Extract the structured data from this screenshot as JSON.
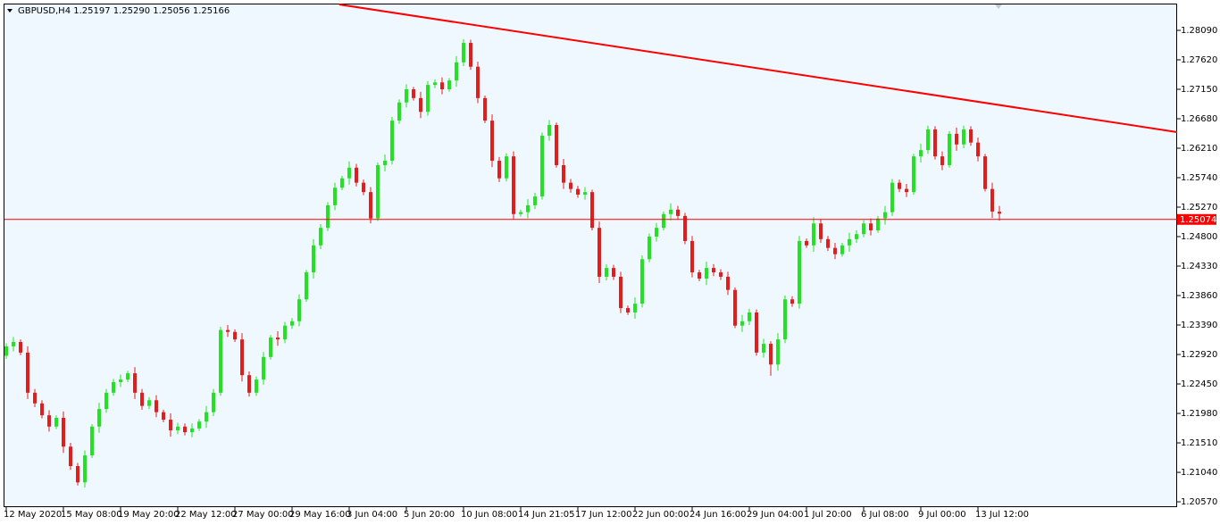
{
  "chart_data": {
    "type": "candlestick",
    "title": "GBPUSD,H4  1.25197 1.25290 1.25056 1.25166",
    "up_color": "#22e322",
    "down_color": "#e41c1c",
    "background": "#f0f8ff",
    "ylim": [
      1.20485,
      1.28503
    ],
    "yticks": [
      {
        "value": 1.2809,
        "label": "1.28090"
      },
      {
        "value": 1.2762,
        "label": "1.27620"
      },
      {
        "value": 1.2715,
        "label": "1.27150"
      },
      {
        "value": 1.2668,
        "label": "1.26680"
      },
      {
        "value": 1.2621,
        "label": "1.26210"
      },
      {
        "value": 1.2574,
        "label": "1.25740"
      },
      {
        "value": 1.2527,
        "label": "1.25270"
      },
      {
        "value": 1.248,
        "label": "1.24800"
      },
      {
        "value": 1.2433,
        "label": "1.24330"
      },
      {
        "value": 1.2386,
        "label": "1.23860"
      },
      {
        "value": 1.2339,
        "label": "1.23390"
      },
      {
        "value": 1.2292,
        "label": "1.22920"
      },
      {
        "value": 1.2245,
        "label": "1.22450"
      },
      {
        "value": 1.2198,
        "label": "1.21980"
      },
      {
        "value": 1.2151,
        "label": "1.21510"
      },
      {
        "value": 1.2104,
        "label": "1.21040"
      },
      {
        "value": 1.2057,
        "label": "1.20570"
      }
    ],
    "xlim": [
      -0.25,
      163.875
    ],
    "xticks": [
      {
        "value": 0,
        "label": "12 May 2020"
      },
      {
        "value": 8,
        "label": "15 May 08:00"
      },
      {
        "value": 16,
        "label": "19 May 20:00"
      },
      {
        "value": 24,
        "label": "22 May 12:00"
      },
      {
        "value": 32,
        "label": "27 May 00:00"
      },
      {
        "value": 40,
        "label": "29 May 16:00"
      },
      {
        "value": 48,
        "label": "3 Jun 04:00"
      },
      {
        "value": 56,
        "label": "5 Jun 20:00"
      },
      {
        "value": 64,
        "label": "10 Jun 08:00"
      },
      {
        "value": 72,
        "label": "14 Jun 21:05"
      },
      {
        "value": 80,
        "label": "17 Jun 12:00"
      },
      {
        "value": 88,
        "label": "22 Jun 00:00"
      },
      {
        "value": 96,
        "label": "24 Jun 16:00"
      },
      {
        "value": 104,
        "label": "29 Jun 04:00"
      },
      {
        "value": 112,
        "label": "1 Jul 20:00"
      },
      {
        "value": 120,
        "label": "6 Jul 08:00"
      },
      {
        "value": 128,
        "label": "9 Jul 00:00"
      },
      {
        "value": 136,
        "label": "13 Jul 12:00"
      }
    ],
    "trendline": {
      "x": [
        46.6,
        163.875
      ],
      "y": [
        1.28503,
        1.26467
      ],
      "color": "#ff0000"
    },
    "hline": {
      "value": 1.25074,
      "color": "#ff0000"
    },
    "candles": [
      [
        1.229,
        1.231,
        1.2285,
        1.2305
      ],
      [
        1.2305,
        1.232,
        1.2297,
        1.2312
      ],
      [
        1.2312,
        1.2316,
        1.2291,
        1.2295
      ],
      [
        1.2295,
        1.2305,
        1.2221,
        1.2231
      ],
      [
        1.2231,
        1.2237,
        1.2208,
        1.2214
      ],
      [
        1.2214,
        1.2219,
        1.219,
        1.2195
      ],
      [
        1.2195,
        1.2203,
        1.2169,
        1.2177
      ],
      [
        1.2177,
        1.2195,
        1.2173,
        1.2191
      ],
      [
        1.2191,
        1.2201,
        1.2135,
        1.2145
      ],
      [
        1.2145,
        1.2151,
        1.2108,
        1.2114
      ],
      [
        1.2114,
        1.2119,
        1.2083,
        1.2088
      ],
      [
        1.2088,
        1.2139,
        1.208,
        1.2131
      ],
      [
        1.2131,
        1.2181,
        1.2127,
        1.2177
      ],
      [
        1.2177,
        1.2215,
        1.2167,
        1.2205
      ],
      [
        1.2205,
        1.2237,
        1.2199,
        1.2231
      ],
      [
        1.2231,
        1.2253,
        1.2226,
        1.2248
      ],
      [
        1.2248,
        1.226,
        1.224,
        1.2252
      ],
      [
        1.2252,
        1.2266,
        1.2248,
        1.2262
      ],
      [
        1.2262,
        1.2272,
        1.2221,
        1.2231
      ],
      [
        1.2231,
        1.2237,
        1.2204,
        1.221
      ],
      [
        1.221,
        1.2224,
        1.2205,
        1.2219
      ],
      [
        1.2219,
        1.2227,
        1.2192,
        1.22
      ],
      [
        1.22,
        1.2204,
        1.2184,
        1.2188
      ],
      [
        1.2188,
        1.2198,
        1.2161,
        1.2171
      ],
      [
        1.2171,
        1.2183,
        1.2165,
        1.2177
      ],
      [
        1.2177,
        1.2182,
        1.2163,
        1.2168
      ],
      [
        1.2168,
        1.2182,
        1.216,
        1.2174
      ],
      [
        1.2174,
        1.2189,
        1.217,
        1.2185
      ],
      [
        1.2185,
        1.221,
        1.2175,
        1.22
      ],
      [
        1.22,
        1.2237,
        1.2194,
        1.2231
      ],
      [
        1.2231,
        1.2336,
        1.2226,
        1.2331
      ],
      [
        1.2331,
        1.2339,
        1.232,
        1.2328
      ],
      [
        1.2328,
        1.2332,
        1.2312,
        1.2316
      ],
      [
        1.2316,
        1.2326,
        1.2249,
        1.2259
      ],
      [
        1.2259,
        1.2265,
        1.2225,
        1.2231
      ],
      [
        1.2231,
        1.2257,
        1.2226,
        1.2252
      ],
      [
        1.2252,
        1.2296,
        1.2244,
        1.2288
      ],
      [
        1.2288,
        1.2323,
        1.2284,
        1.2319
      ],
      [
        1.2319,
        1.2329,
        1.2306,
        1.2316
      ],
      [
        1.2316,
        1.2344,
        1.231,
        1.2338
      ],
      [
        1.2338,
        1.235,
        1.2333,
        1.2345
      ],
      [
        1.2345,
        1.2388,
        1.2337,
        1.238
      ],
      [
        1.238,
        1.2427,
        1.2376,
        1.2423
      ],
      [
        1.2423,
        1.2476,
        1.2413,
        1.2466
      ],
      [
        1.2466,
        1.25,
        1.246,
        1.2494
      ],
      [
        1.2494,
        1.2535,
        1.2489,
        1.253
      ],
      [
        1.253,
        1.2566,
        1.2522,
        1.2558
      ],
      [
        1.2558,
        1.2577,
        1.2554,
        1.2573
      ],
      [
        1.2573,
        1.26,
        1.2563,
        1.259
      ],
      [
        1.259,
        1.2596,
        1.256,
        1.2566
      ],
      [
        1.2566,
        1.2571,
        1.2546,
        1.2551
      ],
      [
        1.2551,
        1.2559,
        1.2501,
        1.2509
      ],
      [
        1.2509,
        1.2598,
        1.2505,
        1.2594
      ],
      [
        1.2594,
        1.2611,
        1.2584,
        1.2601
      ],
      [
        1.2601,
        1.2671,
        1.2595,
        1.2665
      ],
      [
        1.2665,
        1.2699,
        1.266,
        1.2694
      ],
      [
        1.2694,
        1.2723,
        1.2686,
        1.2715
      ],
      [
        1.2715,
        1.2719,
        1.2697,
        1.2701
      ],
      [
        1.2701,
        1.2711,
        1.2669,
        1.2679
      ],
      [
        1.2679,
        1.2728,
        1.2673,
        1.2722
      ],
      [
        1.2722,
        1.2731,
        1.2717,
        1.2726
      ],
      [
        1.2726,
        1.2734,
        1.2707,
        1.2715
      ],
      [
        1.2715,
        1.2733,
        1.2711,
        1.2729
      ],
      [
        1.2729,
        1.2768,
        1.2719,
        1.2758
      ],
      [
        1.2758,
        1.2795,
        1.2752,
        1.2789
      ],
      [
        1.2789,
        1.2794,
        1.2746,
        1.2751
      ],
      [
        1.2751,
        1.2759,
        1.2693,
        1.2701
      ],
      [
        1.2701,
        1.2705,
        1.2661,
        1.2665
      ],
      [
        1.2665,
        1.2675,
        1.2591,
        1.2601
      ],
      [
        1.2601,
        1.2607,
        1.2567,
        1.2573
      ],
      [
        1.2573,
        1.2613,
        1.2568,
        1.2608
      ],
      [
        1.2608,
        1.2616,
        1.2508,
        1.2516
      ],
      [
        1.2516,
        1.2523,
        1.2512,
        1.2519
      ],
      [
        1.2519,
        1.254,
        1.2509,
        1.253
      ],
      [
        1.253,
        1.255,
        1.2524,
        1.2544
      ],
      [
        1.2544,
        1.2646,
        1.2539,
        1.2641
      ],
      [
        1.2641,
        1.2666,
        1.2633,
        1.2658
      ],
      [
        1.2658,
        1.2662,
        1.259,
        1.2594
      ],
      [
        1.2594,
        1.2604,
        1.2556,
        1.2566
      ],
      [
        1.2566,
        1.2572,
        1.255,
        1.2556
      ],
      [
        1.2556,
        1.2561,
        1.2542,
        1.2547
      ],
      [
        1.2547,
        1.2559,
        1.2539,
        1.2551
      ],
      [
        1.2551,
        1.2555,
        1.249,
        1.2494
      ],
      [
        1.2494,
        1.2504,
        1.2406,
        1.2416
      ],
      [
        1.2416,
        1.2436,
        1.241,
        1.243
      ],
      [
        1.243,
        1.2435,
        1.2411,
        1.2416
      ],
      [
        1.2416,
        1.2424,
        1.2358,
        1.2366
      ],
      [
        1.2366,
        1.237,
        1.2355,
        1.2359
      ],
      [
        1.2359,
        1.2383,
        1.2349,
        1.2373
      ],
      [
        1.2373,
        1.245,
        1.2367,
        1.2444
      ],
      [
        1.2444,
        1.2485,
        1.2439,
        1.248
      ],
      [
        1.248,
        1.2502,
        1.2472,
        1.2494
      ],
      [
        1.2494,
        1.252,
        1.249,
        1.2516
      ],
      [
        1.2516,
        1.2533,
        1.2506,
        1.2523
      ],
      [
        1.2523,
        1.2529,
        1.2507,
        1.2513
      ],
      [
        1.2513,
        1.2518,
        1.2468,
        1.2473
      ],
      [
        1.2473,
        1.2481,
        1.2415,
        1.2423
      ],
      [
        1.2423,
        1.2427,
        1.2409,
        1.2413
      ],
      [
        1.2413,
        1.244,
        1.2403,
        1.243
      ],
      [
        1.243,
        1.2436,
        1.2417,
        1.2423
      ],
      [
        1.2423,
        1.2428,
        1.2411,
        1.2416
      ],
      [
        1.2416,
        1.2424,
        1.2387,
        1.2395
      ],
      [
        1.2395,
        1.2399,
        1.2334,
        1.2338
      ],
      [
        1.2338,
        1.2355,
        1.2328,
        1.2345
      ],
      [
        1.2345,
        1.2365,
        1.2339,
        1.2359
      ],
      [
        1.2359,
        1.2364,
        1.229,
        1.2295
      ],
      [
        1.2295,
        1.2317,
        1.2287,
        1.2309
      ],
      [
        1.2309,
        1.2313,
        1.2258,
        1.2276
      ],
      [
        1.2276,
        1.2326,
        1.2266,
        1.2316
      ],
      [
        1.2316,
        1.2386,
        1.231,
        1.238
      ],
      [
        1.238,
        1.2385,
        1.2368,
        1.2373
      ],
      [
        1.2373,
        1.2481,
        1.2365,
        1.2473
      ],
      [
        1.2473,
        1.2477,
        1.2462,
        1.2466
      ],
      [
        1.2466,
        1.2511,
        1.2456,
        1.2501
      ],
      [
        1.2501,
        1.2507,
        1.247,
        1.2476
      ],
      [
        1.2476,
        1.2481,
        1.2457,
        1.2462
      ],
      [
        1.2462,
        1.247,
        1.2444,
        1.2452
      ],
      [
        1.2452,
        1.247,
        1.2448,
        1.2466
      ],
      [
        1.2466,
        1.2486,
        1.2456,
        1.2476
      ],
      [
        1.2476,
        1.249,
        1.247,
        1.2484
      ],
      [
        1.2484,
        1.2506,
        1.2479,
        1.2501
      ],
      [
        1.2501,
        1.2509,
        1.2482,
        1.249
      ],
      [
        1.249,
        1.2513,
        1.2486,
        1.2509
      ],
      [
        1.2509,
        1.2529,
        1.2499,
        1.2519
      ],
      [
        1.2519,
        1.2572,
        1.2513,
        1.2566
      ],
      [
        1.2566,
        1.2571,
        1.2551,
        1.2556
      ],
      [
        1.2556,
        1.2564,
        1.2543,
        1.2551
      ],
      [
        1.2551,
        1.2612,
        1.2547,
        1.2608
      ],
      [
        1.2608,
        1.2628,
        1.2598,
        1.2618
      ],
      [
        1.2618,
        1.2657,
        1.2612,
        1.2651
      ],
      [
        1.2651,
        1.2656,
        1.2603,
        1.2608
      ],
      [
        1.2608,
        1.2616,
        1.2586,
        1.2594
      ],
      [
        1.2594,
        1.2648,
        1.259,
        1.2644
      ],
      [
        1.2644,
        1.2654,
        1.2617,
        1.2627
      ],
      [
        1.2627,
        1.2657,
        1.2621,
        1.2651
      ],
      [
        1.2651,
        1.2656,
        1.2625,
        1.263
      ],
      [
        1.263,
        1.2638,
        1.26,
        1.2608
      ],
      [
        1.2608,
        1.2612,
        1.2552,
        1.2556
      ],
      [
        1.2556,
        1.2566,
        1.251,
        1.252
      ],
      [
        1.25197,
        1.2529,
        1.25056,
        1.25166
      ]
    ]
  }
}
